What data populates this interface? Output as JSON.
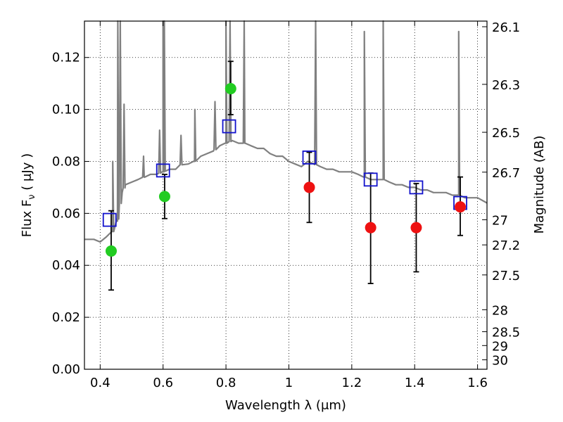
{
  "chart_data": {
    "type": "scatter",
    "xlabel": "Wavelength  λ (μm)",
    "ylabel": "Flux  F",
    "ylabel_sub": "ν",
    "ylabel_unit": "  ( μJy )",
    "y2label": "Magnitude (AB)",
    "xlim": [
      0.35,
      1.63
    ],
    "ylim": [
      0.0,
      0.134
    ],
    "grid": true,
    "x_ticks": [
      0.4,
      0.6,
      0.8,
      1.0,
      1.2,
      1.4,
      1.6
    ],
    "x_tick_labels": [
      "0.4",
      "0.6",
      "0.8",
      "1",
      "1.2",
      "1.4",
      "1.6"
    ],
    "y_ticks": [
      0.0,
      0.02,
      0.04,
      0.06,
      0.08,
      0.1,
      0.12
    ],
    "y_tick_labels": [
      "0.00",
      "0.02",
      "0.04",
      "0.06",
      "0.08",
      "0.10",
      "0.12"
    ],
    "y2_ticks": [
      26.1,
      26.3,
      26.5,
      26.7,
      27,
      27.2,
      27.5,
      28,
      28.5,
      29,
      30
    ],
    "y2_tick_labels": [
      "26.1",
      "26.3",
      "26.5",
      "26.7",
      "27",
      "27.2",
      "27.5",
      "28",
      "28.5",
      "29",
      "30"
    ],
    "colors": {
      "model": "#808080",
      "green": "#22cc22",
      "red": "#ee1111",
      "box": "#1111cc",
      "error": "#000000"
    },
    "model_spectrum": {
      "name": "",
      "x": [
        0.35,
        0.38,
        0.4,
        0.42,
        0.44,
        0.455,
        0.46,
        0.47,
        0.48,
        0.5,
        0.52,
        0.54,
        0.56,
        0.58,
        0.6,
        0.62,
        0.64,
        0.66,
        0.68,
        0.7,
        0.72,
        0.74,
        0.76,
        0.78,
        0.8,
        0.82,
        0.84,
        0.86,
        0.88,
        0.9,
        0.92,
        0.94,
        0.96,
        0.98,
        1.0,
        1.02,
        1.04,
        1.06,
        1.08,
        1.1,
        1.12,
        1.14,
        1.16,
        1.18,
        1.2,
        1.22,
        1.24,
        1.26,
        1.28,
        1.3,
        1.32,
        1.34,
        1.36,
        1.38,
        1.4,
        1.42,
        1.44,
        1.46,
        1.48,
        1.5,
        1.52,
        1.54,
        1.56,
        1.58,
        1.6,
        1.63
      ],
      "y": [
        0.05,
        0.05,
        0.049,
        0.051,
        0.053,
        0.057,
        0.061,
        0.068,
        0.071,
        0.072,
        0.073,
        0.074,
        0.075,
        0.075,
        0.076,
        0.077,
        0.077,
        0.079,
        0.079,
        0.08,
        0.082,
        0.083,
        0.084,
        0.086,
        0.087,
        0.088,
        0.087,
        0.087,
        0.086,
        0.085,
        0.085,
        0.083,
        0.082,
        0.082,
        0.08,
        0.079,
        0.078,
        0.08,
        0.079,
        0.078,
        0.077,
        0.077,
        0.076,
        0.076,
        0.076,
        0.075,
        0.074,
        0.073,
        0.073,
        0.073,
        0.072,
        0.071,
        0.071,
        0.07,
        0.07,
        0.069,
        0.069,
        0.068,
        0.068,
        0.068,
        0.067,
        0.067,
        0.066,
        0.066,
        0.066,
        0.064
      ]
    },
    "emission_lines": [
      {
        "x": 0.44,
        "peak": 0.08
      },
      {
        "x": 0.456,
        "peak": 0.134
      },
      {
        "x": 0.464,
        "peak": 0.134
      },
      {
        "x": 0.476,
        "peak": 0.102
      },
      {
        "x": 0.538,
        "peak": 0.082
      },
      {
        "x": 0.589,
        "peak": 0.092
      },
      {
        "x": 0.6,
        "peak": 0.134
      },
      {
        "x": 0.604,
        "peak": 0.134
      },
      {
        "x": 0.657,
        "peak": 0.09
      },
      {
        "x": 0.701,
        "peak": 0.1
      },
      {
        "x": 0.765,
        "peak": 0.103
      },
      {
        "x": 0.8,
        "peak": 0.134
      },
      {
        "x": 0.813,
        "peak": 0.134
      },
      {
        "x": 0.858,
        "peak": 0.134
      },
      {
        "x": 1.085,
        "peak": 0.134
      },
      {
        "x": 1.24,
        "peak": 0.13
      },
      {
        "x": 1.3,
        "peak": 0.134
      },
      {
        "x": 1.54,
        "peak": 0.13
      }
    ],
    "green_points": {
      "x": [
        0.435,
        0.605,
        0.815
      ],
      "y": [
        0.0455,
        0.0665,
        0.108
      ],
      "err_low": [
        0.0305,
        0.058,
        0.098
      ],
      "err_high": [
        0.061,
        0.075,
        0.1185
      ]
    },
    "red_points": {
      "x": [
        1.065,
        1.26,
        1.405,
        1.545
      ],
      "y": [
        0.07,
        0.0545,
        0.0545,
        0.0625
      ],
      "err_low": [
        0.0565,
        0.033,
        0.0375,
        0.0515
      ],
      "err_high": [
        0.0835,
        0.0755,
        0.0715,
        0.074
      ]
    },
    "boxes": {
      "x": [
        0.43,
        0.6,
        0.81,
        1.065,
        1.26,
        1.405,
        1.545
      ],
      "y": [
        0.0575,
        0.0765,
        0.0935,
        0.0815,
        0.073,
        0.07,
        0.064
      ]
    }
  }
}
